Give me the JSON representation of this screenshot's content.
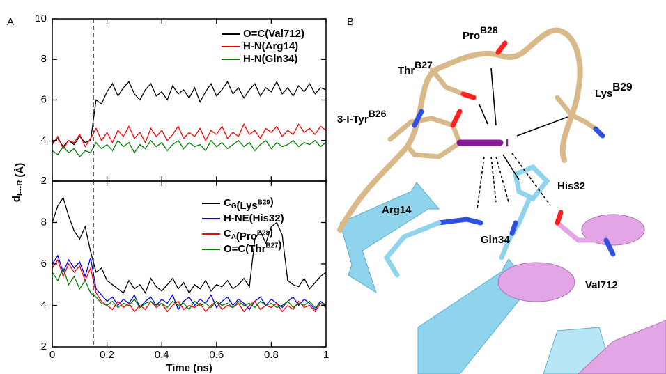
{
  "panel_labels": [
    "A",
    "B"
  ],
  "chart_data": [
    {
      "type": "line",
      "ylabel": [
        "d",
        {
          "sub": "I---R"
        },
        " (Å)"
      ],
      "x": [
        0,
        0.02,
        0.04,
        0.06,
        0.08,
        0.1,
        0.12,
        0.14,
        0.16,
        0.18,
        0.2,
        0.22,
        0.24,
        0.26,
        0.28,
        0.3,
        0.32,
        0.34,
        0.36,
        0.38,
        0.4,
        0.42,
        0.44,
        0.46,
        0.48,
        0.5,
        0.52,
        0.54,
        0.56,
        0.58,
        0.6,
        0.62,
        0.64,
        0.66,
        0.68,
        0.7,
        0.72,
        0.74,
        0.76,
        0.78,
        0.8,
        0.82,
        0.84,
        0.86,
        0.88,
        0.9,
        0.92,
        0.94,
        0.96,
        0.98,
        1
      ],
      "xlim": [
        0,
        1
      ],
      "ylim": [
        2,
        10
      ],
      "yticks": [
        2,
        4,
        6,
        8,
        10
      ],
      "vline": 0.15,
      "series": [
        {
          "name": [
            "O=C(Val712)"
          ],
          "color": "#000000",
          "values": [
            3.9,
            4.1,
            3.7,
            4.0,
            3.8,
            4.2,
            3.9,
            4.0,
            6.0,
            5.8,
            6.4,
            6.8,
            6.2,
            6.6,
            6.9,
            6.3,
            6.0,
            6.5,
            6.8,
            6.2,
            6.4,
            6.0,
            6.7,
            6.3,
            6.5,
            6.1,
            6.6,
            5.9,
            6.4,
            6.8,
            6.2,
            6.5,
            6.9,
            6.3,
            6.6,
            6.1,
            6.5,
            6.8,
            6.2,
            6.6,
            6.4,
            6.9,
            6.3,
            6.6,
            6.2,
            6.7,
            6.4,
            6.8,
            6.3,
            6.6,
            6.5
          ]
        },
        {
          "name": [
            "H-N(Arg14)"
          ],
          "color": "#ff0000",
          "values": [
            3.8,
            4.2,
            3.6,
            4.0,
            3.9,
            4.3,
            3.7,
            4.1,
            4.6,
            4.0,
            4.4,
            3.9,
            4.5,
            4.2,
            4.7,
            4.1,
            4.4,
            3.9,
            4.6,
            4.2,
            4.5,
            4.0,
            4.3,
            4.7,
            4.1,
            4.4,
            4.2,
            4.6,
            4.0,
            4.5,
            4.3,
            4.7,
            4.1,
            4.4,
            4.2,
            4.8,
            4.3,
            4.5,
            4.1,
            4.6,
            4.4,
            4.7,
            4.2,
            4.5,
            4.3,
            4.8,
            4.4,
            4.6,
            4.3,
            4.7,
            4.5
          ]
        },
        {
          "name": [
            "H-N(Gln34)"
          ],
          "color": "#008000",
          "values": [
            3.5,
            3.3,
            3.7,
            3.4,
            3.6,
            3.2,
            3.5,
            3.4,
            3.9,
            3.6,
            3.8,
            3.5,
            4.0,
            3.7,
            3.9,
            3.4,
            3.8,
            3.6,
            4.0,
            3.7,
            3.9,
            3.5,
            3.8,
            4.0,
            3.6,
            3.9,
            3.7,
            3.8,
            3.5,
            4.0,
            3.7,
            3.9,
            3.6,
            3.8,
            4.0,
            3.7,
            3.9,
            3.5,
            3.8,
            4.0,
            3.6,
            3.9,
            3.7,
            3.8,
            4.0,
            3.7,
            3.9,
            3.8,
            4.0,
            3.7,
            3.9
          ]
        }
      ]
    },
    {
      "type": "line",
      "xlabel": "Time (ns)",
      "x": [
        0,
        0.02,
        0.04,
        0.06,
        0.08,
        0.1,
        0.12,
        0.14,
        0.16,
        0.18,
        0.2,
        0.22,
        0.24,
        0.26,
        0.28,
        0.3,
        0.32,
        0.34,
        0.36,
        0.38,
        0.4,
        0.42,
        0.44,
        0.46,
        0.48,
        0.5,
        0.52,
        0.54,
        0.56,
        0.58,
        0.6,
        0.62,
        0.64,
        0.66,
        0.68,
        0.7,
        0.72,
        0.74,
        0.76,
        0.78,
        0.8,
        0.82,
        0.84,
        0.86,
        0.88,
        0.9,
        0.92,
        0.94,
        0.96,
        0.98,
        1
      ],
      "xlim": [
        0,
        1
      ],
      "xticks": [
        0,
        0.2,
        0.4,
        0.6,
        0.8,
        1
      ],
      "ylim": [
        2,
        10
      ],
      "yticks": [
        2,
        4,
        6,
        8
      ],
      "vline": 0.15,
      "series": [
        {
          "name": [
            "C",
            {
              "sub": "G"
            },
            "(Lys",
            {
              "sup": "B29"
            },
            ")"
          ],
          "color": "#000000",
          "values": [
            8.0,
            8.8,
            9.2,
            8.3,
            7.6,
            7.2,
            7.8,
            6.6,
            5.6,
            5.8,
            5.2,
            5.0,
            4.8,
            4.6,
            5.2,
            4.8,
            5.0,
            4.6,
            5.3,
            4.9,
            4.7,
            5.0,
            5.3,
            4.8,
            5.1,
            4.6,
            5.0,
            4.8,
            5.2,
            4.7,
            5.0,
            4.9,
            5.2,
            4.8,
            5.0,
            5.3,
            4.9,
            7.2,
            7.6,
            7.0,
            7.8,
            8.0,
            7.4,
            5.2,
            5.0,
            4.9,
            5.3,
            4.8,
            5.1,
            5.4,
            5.6
          ]
        },
        {
          "name": [
            "H-NE(His32)"
          ],
          "color": "#0000ff",
          "values": [
            6.0,
            6.4,
            5.6,
            6.2,
            5.8,
            6.1,
            5.4,
            6.3,
            4.8,
            4.5,
            4.2,
            4.4,
            4.0,
            4.3,
            4.1,
            4.5,
            3.9,
            4.2,
            4.4,
            4.0,
            4.3,
            4.1,
            4.5,
            3.8,
            4.2,
            4.4,
            4.0,
            4.3,
            4.1,
            4.5,
            3.9,
            4.2,
            4.4,
            4.0,
            4.3,
            4.1,
            3.8,
            4.2,
            4.4,
            4.0,
            4.3,
            4.1,
            3.9,
            4.2,
            4.4,
            4.0,
            4.3,
            4.1,
            3.8,
            4.2,
            4.0
          ]
        },
        {
          "name": [
            "C",
            {
              "sub": "A"
            },
            "(Pro",
            {
              "sup": "B28"
            },
            ")"
          ],
          "color": "#ff0000",
          "values": [
            5.8,
            6.2,
            5.4,
            6.0,
            5.6,
            5.9,
            5.2,
            5.8,
            4.6,
            4.2,
            4.0,
            3.8,
            4.2,
            3.9,
            4.1,
            3.7,
            4.0,
            3.8,
            4.2,
            3.9,
            4.1,
            3.7,
            4.0,
            4.2,
            3.8,
            4.0,
            3.9,
            4.1,
            3.7,
            4.0,
            4.2,
            3.8,
            4.0,
            3.9,
            4.1,
            3.7,
            4.0,
            4.2,
            3.8,
            4.0,
            3.9,
            4.1,
            3.7,
            4.0,
            3.8,
            4.2,
            3.9,
            4.0,
            3.7,
            4.1,
            3.9
          ]
        },
        {
          "name": [
            "O=C(Thr",
            {
              "sup": "B27"
            },
            ")"
          ],
          "color": "#008000",
          "values": [
            5.6,
            5.2,
            5.8,
            5.0,
            5.4,
            4.8,
            5.2,
            4.6,
            4.4,
            4.1,
            4.0,
            4.2,
            3.9,
            4.1,
            4.0,
            4.3,
            3.9,
            4.1,
            4.2,
            4.0,
            4.1,
            3.9,
            4.2,
            4.0,
            4.1,
            3.8,
            4.2,
            4.0,
            4.1,
            3.9,
            4.2,
            4.0,
            4.1,
            3.9,
            4.2,
            4.0,
            4.1,
            3.9,
            4.2,
            4.0,
            4.1,
            3.9,
            4.0,
            4.2,
            3.9,
            4.1,
            4.0,
            4.2,
            3.9,
            4.1,
            4.0
          ]
        }
      ]
    }
  ],
  "panel_b": {
    "labels": [
      [
        "Pro",
        {
          "sup": "B28"
        }
      ],
      [
        "Thr",
        {
          "sup": "B27"
        }
      ],
      [
        "Lys",
        {
          "sup": "B29"
        }
      ],
      [
        "3-I-Tyr",
        {
          "sup": "B26"
        }
      ],
      [
        "I"
      ],
      [
        "His32"
      ],
      [
        "Arg14"
      ],
      [
        "Gln34"
      ],
      [
        "Val712"
      ]
    ]
  }
}
